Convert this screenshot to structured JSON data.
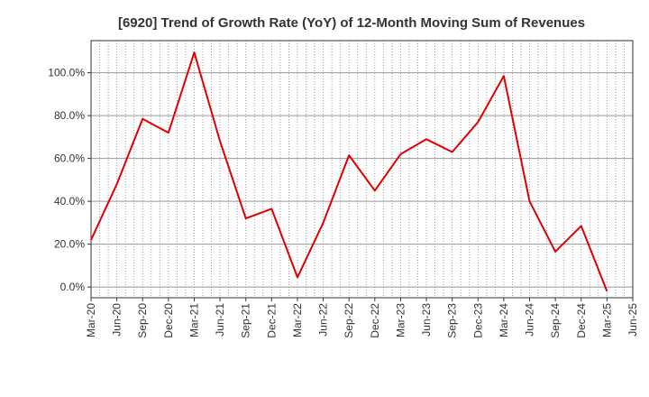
{
  "chart_data": {
    "type": "line",
    "title": "[6920]  Trend of Growth Rate (YoY) of 12-Month Moving Sum of Revenues",
    "xlabel": "",
    "ylabel": "",
    "x_ticks": [
      "Mar-20",
      "Jun-20",
      "Sep-20",
      "Dec-20",
      "Mar-21",
      "Jun-21",
      "Sep-21",
      "Dec-21",
      "Mar-22",
      "Jun-22",
      "Sep-22",
      "Dec-22",
      "Mar-23",
      "Jun-23",
      "Sep-23",
      "Dec-23",
      "Mar-24",
      "Jun-24",
      "Sep-24",
      "Dec-24",
      "Mar-25",
      "Jun-25"
    ],
    "y_ticks": [
      "0.0%",
      "20.0%",
      "40.0%",
      "60.0%",
      "80.0%",
      "100.0%"
    ],
    "y_tick_values": [
      0,
      20,
      40,
      60,
      80,
      100
    ],
    "ylim": [
      -5,
      115
    ],
    "grid": true,
    "series": [
      {
        "color": "#e00000",
        "x": [
          "Mar-20",
          "Jun-20",
          "Sep-20",
          "Dec-20",
          "Mar-21",
          "Jun-21",
          "Sep-21",
          "Dec-21",
          "Mar-22",
          "Jun-22",
          "Sep-22",
          "Dec-22",
          "Mar-23",
          "Jun-23",
          "Sep-23",
          "Dec-23",
          "Mar-24",
          "Jun-24",
          "Sep-24",
          "Dec-24",
          "Mar-25"
        ],
        "values": [
          22.0,
          48.0,
          78.5,
          72.0,
          109.5,
          68.0,
          32.0,
          36.5,
          4.5,
          30.0,
          61.5,
          45.0,
          62.0,
          69.0,
          63.0,
          77.0,
          98.5,
          40.0,
          16.5,
          28.5,
          -2.0
        ]
      }
    ]
  }
}
